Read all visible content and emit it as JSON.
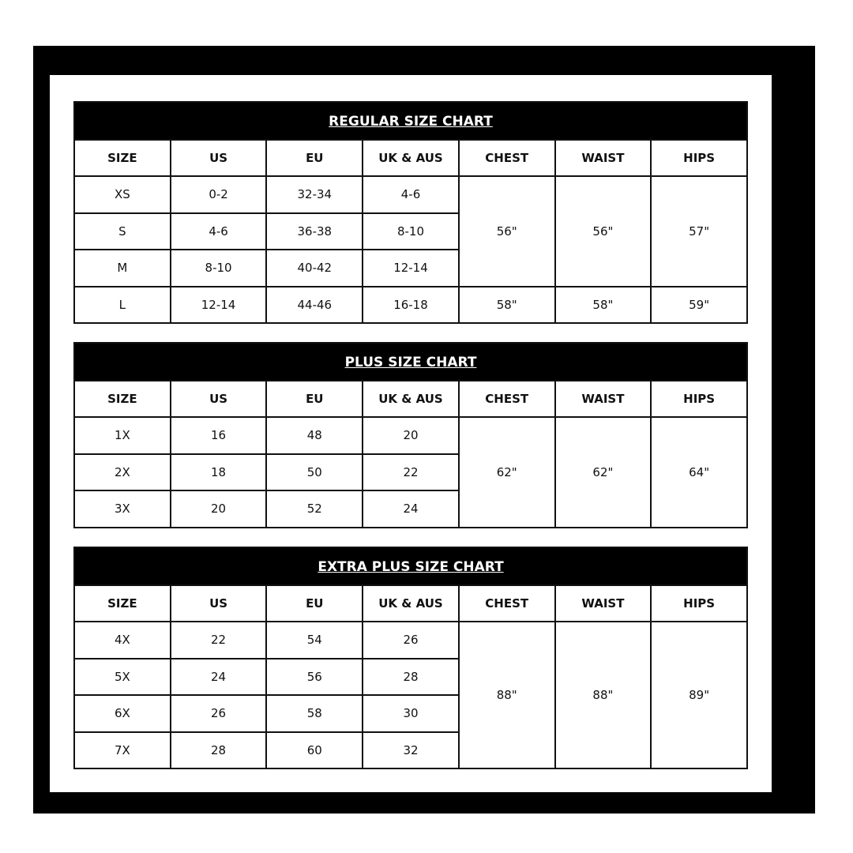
{
  "colors": {
    "frame": "#000000",
    "background": "#ffffff",
    "title_bar": "#000000"
  },
  "headers": [
    "SIZE",
    "US",
    "EU",
    "UK & AUS",
    "CHEST",
    "WAIST",
    "HIPS"
  ],
  "tables": [
    {
      "title": "REGULAR SIZE CHART",
      "rows": [
        [
          "XS",
          "0-2",
          "32-34",
          "4-6"
        ],
        [
          "S",
          "4-6",
          "36-38",
          "8-10"
        ],
        [
          "M",
          "8-10",
          "40-42",
          "12-14"
        ],
        [
          "L",
          "12-14",
          "44-46",
          "16-18"
        ]
      ],
      "measurements": [
        {
          "span": 3,
          "chest": "56\"",
          "waist": "56\"",
          "hips": "57\""
        },
        {
          "span": 1,
          "chest": "58\"",
          "waist": "58\"",
          "hips": "59\""
        }
      ]
    },
    {
      "title": "PLUS SIZE CHART",
      "rows": [
        [
          "1X",
          "16",
          "48",
          "20"
        ],
        [
          "2X",
          "18",
          "50",
          "22"
        ],
        [
          "3X",
          "20",
          "52",
          "24"
        ]
      ],
      "measurements": [
        {
          "span": 3,
          "chest": "62\"",
          "waist": "62\"",
          "hips": "64\""
        }
      ]
    },
    {
      "title": "EXTRA PLUS SIZE CHART",
      "rows": [
        [
          "4X",
          "22",
          "54",
          "26"
        ],
        [
          "5X",
          "24",
          "56",
          "28"
        ],
        [
          "6X",
          "26",
          "58",
          "30"
        ],
        [
          "7X",
          "28",
          "60",
          "32"
        ]
      ],
      "measurements": [
        {
          "span": 4,
          "chest": "88\"",
          "waist": "88\"",
          "hips": "89\""
        }
      ]
    }
  ]
}
